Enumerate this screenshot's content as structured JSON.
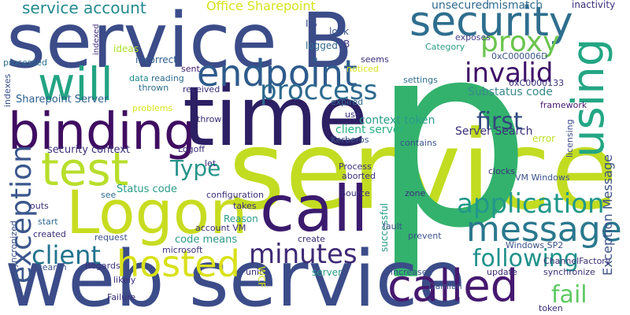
{
  "words": [
    {
      "text": "service B",
      "color": "#3b4c89"
    },
    {
      "text": "security",
      "color": "#2e6e8e"
    },
    {
      "text": "binding",
      "color": "#3f0d61"
    },
    {
      "text": "time",
      "color": "#2c1f63"
    },
    {
      "text": "service",
      "color": "#c2dc21"
    },
    {
      "text": "p",
      "color": "#33b26d"
    },
    {
      "text": "using",
      "color": "#23a684"
    },
    {
      "text": "web service",
      "color": "#3b4c89"
    },
    {
      "text": "called",
      "color": "#46196f"
    },
    {
      "text": "Logon",
      "color": "#c8dc21"
    },
    {
      "text": "call",
      "color": "#3b1b6e"
    },
    {
      "text": "test",
      "color": "#b8de2b"
    },
    {
      "text": "endpoint",
      "color": "#2e5b8c"
    },
    {
      "text": "will",
      "color": "#23a483"
    },
    {
      "text": "proxy",
      "color": "#6ac54e"
    },
    {
      "text": "invalid",
      "color": "#3f1168"
    },
    {
      "text": "proccess",
      "color": "#2d6a8e"
    },
    {
      "text": "first",
      "color": "#31487e"
    },
    {
      "text": "message",
      "color": "#2a788e"
    },
    {
      "text": "application",
      "color": "#22988a"
    },
    {
      "text": "following",
      "color": "#22928c"
    },
    {
      "text": "hosted",
      "color": "#d9e11a"
    },
    {
      "text": "minutes",
      "color": "#3e2a75"
    },
    {
      "text": "client",
      "color": "#22738e"
    },
    {
      "text": "exception",
      "color": "#3a568c"
    },
    {
      "text": "Type",
      "color": "#26938a"
    },
    {
      "text": "fail",
      "color": "#5ec962"
    },
    {
      "text": "Exception Message",
      "color": "#3b528b"
    },
    {
      "text": "service account",
      "color": "#238a8d"
    },
    {
      "text": "Office Sharepoint",
      "color": "#d6e31d"
    },
    {
      "text": "unsecured",
      "color": "#2e6a8e"
    },
    {
      "text": "mismatch",
      "color": "#2e6a8e"
    },
    {
      "text": "inactivity",
      "color": "#3b2f7a"
    },
    {
      "text": "indexed",
      "color": "#46337f"
    },
    {
      "text": "ideas",
      "color": "#ade02d"
    },
    {
      "text": "IIS",
      "color": "#3d4d8a"
    },
    {
      "text": "look",
      "color": "#3a548c"
    },
    {
      "text": "logged",
      "color": "#31688e"
    },
    {
      "text": "B",
      "color": "#433e85"
    },
    {
      "text": "exposes",
      "color": "#433e85"
    },
    {
      "text": "Category",
      "color": "#2a9b88"
    },
    {
      "text": "processed",
      "color": "#2d708e"
    },
    {
      "text": "incorrect",
      "color": "#2e5d8d"
    },
    {
      "text": "seems",
      "color": "#3b2f7a"
    },
    {
      "text": "0xC000006D",
      "color": "#3a548c"
    },
    {
      "text": "noticed",
      "color": "#d6e31d"
    },
    {
      "text": "sent",
      "color": "#3b1b6e"
    },
    {
      "text": "data",
      "color": "#238a8d"
    },
    {
      "text": "reading",
      "color": "#2e6a8e"
    },
    {
      "text": "settings",
      "color": "#2e6e8e"
    },
    {
      "text": "0xC0000133",
      "color": "#3b2f7a"
    },
    {
      "text": "thrown",
      "color": "#2d708e"
    },
    {
      "text": "received",
      "color": "#3b2f7a"
    },
    {
      "text": "Substatus code",
      "color": "#3a8a8c"
    },
    {
      "text": "expired",
      "color": "#31688e"
    },
    {
      "text": "framework",
      "color": "#46196f"
    },
    {
      "text": "Sharepoint Server",
      "color": "#2c5f8d"
    },
    {
      "text": "problems",
      "color": "#d6e31d"
    },
    {
      "text": "use",
      "color": "#3b2f7a"
    },
    {
      "text": "context token",
      "color": "#2a9b88"
    },
    {
      "text": "client server",
      "color": "#2ab07f"
    },
    {
      "text": "Server Search",
      "color": "#3b2f7a"
    },
    {
      "text": "error",
      "color": "#bddf26"
    },
    {
      "text": "throw",
      "color": "#3b2f7a"
    },
    {
      "text": "Kerberos",
      "color": "#3a548c"
    },
    {
      "text": "contains",
      "color": "#3b528b"
    },
    {
      "text": "security context",
      "color": "#3b2f7a"
    },
    {
      "text": "Logoff",
      "color": "#3b2f7a"
    },
    {
      "text": "licensing",
      "color": "#3d4d8a"
    },
    {
      "text": "let",
      "color": "#3b2f7a"
    },
    {
      "text": "Process",
      "color": "#3b2f7a"
    },
    {
      "text": "clocks",
      "color": "#3b2f7a"
    },
    {
      "text": "VM Windows",
      "color": "#3b528b"
    },
    {
      "text": "aborted",
      "color": "#3b2f7a"
    },
    {
      "text": "Status code",
      "color": "#2a9b88"
    },
    {
      "text": "configuration",
      "color": "#3b2f7a"
    },
    {
      "text": "Source",
      "color": "#3b2f7a"
    },
    {
      "text": "zone",
      "color": "#3b2f7a"
    },
    {
      "text": "see",
      "color": "#2e6a8e"
    },
    {
      "text": "takes",
      "color": "#3b2f7a"
    },
    {
      "text": "outs",
      "color": "#3b2f7a"
    },
    {
      "text": "Reason",
      "color": "#2a9b88"
    },
    {
      "text": "start",
      "color": "#2e6a8e"
    },
    {
      "text": "account VM",
      "color": "#3b2f7a"
    },
    {
      "text": "successful",
      "color": "#2a9b88"
    },
    {
      "text": "fault",
      "color": "#3b528b"
    },
    {
      "text": "created",
      "color": "#3b2f7a"
    },
    {
      "text": "request",
      "color": "#3b528b"
    },
    {
      "text": "code means",
      "color": "#2a9b88"
    },
    {
      "text": "syncronized",
      "color": "#3b528b"
    },
    {
      "text": "microsoft",
      "color": "#3b2f7a"
    },
    {
      "text": "Windows SP2",
      "color": "#3b528b"
    },
    {
      "text": "prevent",
      "color": "#3b528b"
    },
    {
      "text": "create",
      "color": "#3b2f7a"
    },
    {
      "text": "Regards",
      "color": "#3b2f7a"
    },
    {
      "text": "search",
      "color": "#3b528b"
    },
    {
      "text": "unit",
      "color": "#3b2f7a"
    },
    {
      "text": "server",
      "color": "#2a9b88"
    },
    {
      "text": "WCF",
      "color": "#d6e31d"
    },
    {
      "text": "increased",
      "color": "#3b528b"
    },
    {
      "text": "synchronize",
      "color": "#3b2f7a"
    },
    {
      "text": "update",
      "color": "#3b2f7a"
    },
    {
      "text": "likely",
      "color": "#3b2f7a"
    },
    {
      "text": "Failure",
      "color": "#3b2f7a"
    },
    {
      "text": "ChannelFactory",
      "color": "#3b2f7a"
    },
    {
      "text": "Damian",
      "color": "#3b528b"
    },
    {
      "text": "token",
      "color": "#3b2f7a"
    },
    {
      "text": "indexes",
      "color": "#3b528b"
    }
  ]
}
